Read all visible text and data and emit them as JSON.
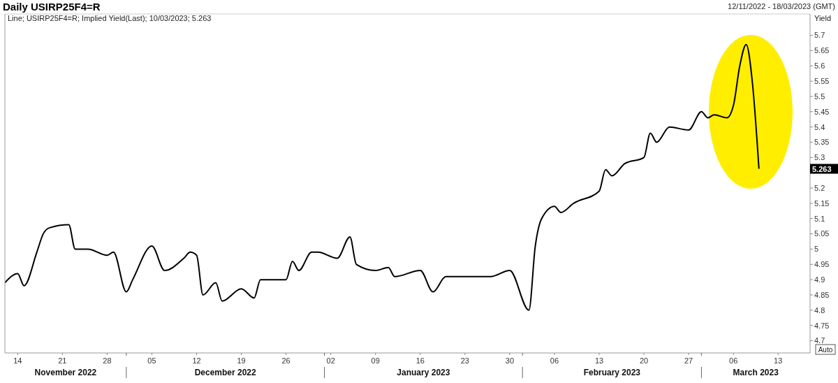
{
  "chart_data": {
    "type": "line",
    "title": "Daily USIRP25F4=R",
    "subtitle": "Line; USIRP25F4=R; Implied Yield(Last); 10/03/2023; 5.263",
    "ylabel": "Yield",
    "annotations": [
      "12/11/2022 - 18/03/2023 (GMT)",
      "5.263",
      "Auto",
      "November 2022",
      "December 2022",
      "January 2023",
      "February 2023",
      "March 2023"
    ],
    "x": [
      "2022-11-12",
      "2022-11-14",
      "2022-11-15",
      "2022-11-17",
      "2022-11-18",
      "2022-11-19",
      "2022-11-22",
      "2022-11-23",
      "2022-11-25",
      "2022-11-28",
      "2022-11-29",
      "2022-12-01",
      "2022-12-02",
      "2022-12-05",
      "2022-12-07",
      "2022-12-10",
      "2022-12-11",
      "2022-12-12",
      "2022-12-13",
      "2022-12-15",
      "2022-12-16",
      "2022-12-19",
      "2022-12-21",
      "2022-12-22",
      "2022-12-26",
      "2022-12-27",
      "2022-12-28",
      "2022-12-30",
      "2022-12-31",
      "2023-01-03",
      "2023-01-05",
      "2023-01-06",
      "2023-01-09",
      "2023-01-11",
      "2023-01-12",
      "2023-01-16",
      "2023-01-18",
      "2023-01-20",
      "2023-01-24",
      "2023-01-27",
      "2023-01-30",
      "2023-02-02",
      "2023-02-03",
      "2023-02-04",
      "2023-02-06",
      "2023-02-07",
      "2023-02-09",
      "2023-02-13",
      "2023-02-14",
      "2023-02-15",
      "2023-02-17",
      "2023-02-20",
      "2023-02-21",
      "2023-02-22",
      "2023-02-24",
      "2023-02-27",
      "2023-03-01",
      "2023-03-02",
      "2023-03-03",
      "2023-03-05",
      "2023-03-06",
      "2023-03-07",
      "2023-03-08",
      "2023-03-09",
      "2023-03-10"
    ],
    "series": [
      {
        "color": "#000000",
        "values": [
          4.89,
          4.92,
          4.88,
          4.99,
          5.05,
          5.07,
          5.08,
          5.0,
          5.0,
          4.98,
          4.99,
          4.86,
          4.9,
          5.01,
          4.93,
          4.97,
          4.99,
          4.98,
          4.85,
          4.89,
          4.83,
          4.87,
          4.84,
          4.9,
          4.9,
          4.96,
          4.93,
          4.99,
          4.99,
          4.97,
          5.04,
          4.95,
          4.93,
          4.94,
          4.91,
          4.93,
          4.86,
          4.91,
          4.91,
          4.91,
          4.93,
          4.8,
          5.01,
          5.1,
          5.14,
          5.12,
          5.15,
          5.19,
          5.26,
          5.24,
          5.28,
          5.3,
          5.38,
          5.35,
          5.4,
          5.39,
          5.45,
          5.43,
          5.44,
          5.43,
          5.47,
          5.6,
          5.67,
          5.54,
          5.263
        ]
      }
    ],
    "xlim": [
      "2022-11-12",
      "2023-03-18"
    ],
    "xticks": [
      {
        "value": "2022-11-14",
        "label": "14"
      },
      {
        "value": "2022-11-21",
        "label": "21"
      },
      {
        "value": "2022-11-28",
        "label": "28"
      },
      {
        "value": "2022-12-05",
        "label": "05"
      },
      {
        "value": "2022-12-12",
        "label": "12"
      },
      {
        "value": "2022-12-19",
        "label": "19"
      },
      {
        "value": "2022-12-26",
        "label": "26"
      },
      {
        "value": "2023-01-02",
        "label": "02"
      },
      {
        "value": "2023-01-09",
        "label": "09"
      },
      {
        "value": "2023-01-16",
        "label": "16"
      },
      {
        "value": "2023-01-23",
        "label": "23"
      },
      {
        "value": "2023-01-30",
        "label": "30"
      },
      {
        "value": "2023-02-06",
        "label": "06"
      },
      {
        "value": "2023-02-13",
        "label": "13"
      },
      {
        "value": "2023-02-20",
        "label": "20"
      },
      {
        "value": "2023-02-27",
        "label": "27"
      },
      {
        "value": "2023-03-06",
        "label": "06"
      },
      {
        "value": "2023-03-13",
        "label": "13"
      },
      {
        "value": "2022-12-01",
        "label": null
      },
      {
        "value": "2023-01-01",
        "label": null
      },
      {
        "value": "2023-02-01",
        "label": null
      },
      {
        "value": "2023-03-01",
        "label": null
      }
    ],
    "ylim": [
      4.66,
      5.77
    ],
    "yticks": [
      4.7,
      4.75,
      4.8,
      4.85,
      4.9,
      4.95,
      5,
      5.05,
      5.1,
      5.15,
      5.2,
      {
        "value": 5.25,
        "label": null
      },
      5.3,
      5.35,
      5.4,
      5.45,
      5.5,
      5.55,
      5.6,
      5.65,
      5.7
    ]
  }
}
